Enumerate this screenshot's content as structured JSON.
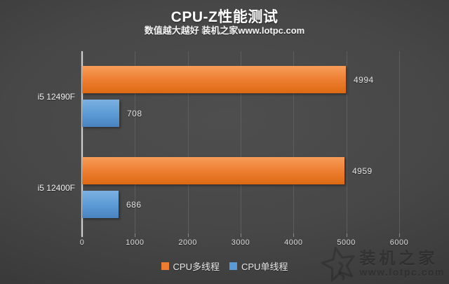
{
  "header": {
    "title": "CPU-Z性能测试",
    "subtitle": "数值越大越好 装机之家www.lotpc.com"
  },
  "chart_data": {
    "type": "bar",
    "orientation": "horizontal",
    "title": "CPU-Z性能测试",
    "subtitle": "数值越大越好 装机之家www.lotpc.com",
    "categories": [
      "i5 12490F",
      "i5 12400F"
    ],
    "series": [
      {
        "name": "CPU多线程",
        "values": [
          4994,
          4959
        ],
        "color": "#ed7d31",
        "gradient_top": "#f79d58",
        "gradient_bottom": "#dd6a12"
      },
      {
        "name": "CPU单线程",
        "values": [
          708,
          686
        ],
        "color": "#5b9bd5",
        "gradient_top": "#7db1e2",
        "gradient_bottom": "#4a83bf"
      }
    ],
    "xlim": [
      0,
      6000
    ],
    "x_ticks": [
      0,
      1000,
      2000,
      3000,
      4000,
      5000,
      6000
    ],
    "grid": true,
    "legend_position": "bottom",
    "value_labels": true,
    "axis_line_color": "#cfcfcf",
    "gridline_color": "#5d5d5d",
    "tick_mark_color": "#8a8a8a",
    "tick_label_color": "#dedede"
  },
  "watermark": {
    "icon": "star-logo",
    "name": "装机之家",
    "url": "www.lotpc.com"
  }
}
